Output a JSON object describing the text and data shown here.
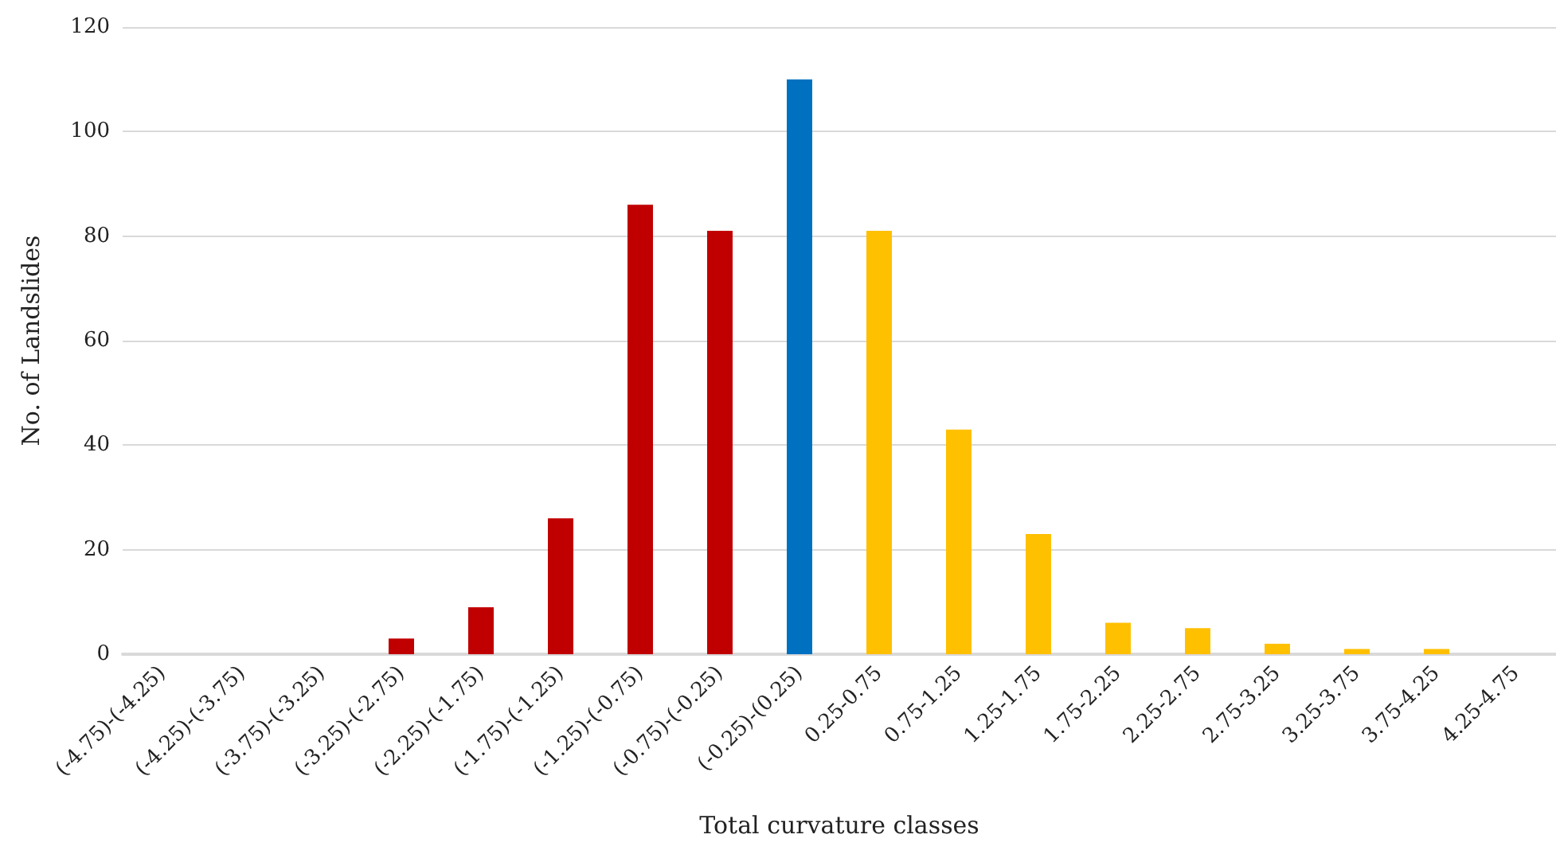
{
  "chart_data": {
    "type": "bar",
    "xlabel": "Total curvature classes",
    "ylabel": "No. of Landslides",
    "categories": [
      "(-4.75)-(-4.25)",
      "(-4.25)-(-3.75)",
      "(-3.75)-(-3.25)",
      "(-3.25)-(-2.75)",
      "(-2.25)-(-1.75)",
      "(-1.75)-(-1.25)",
      "(-1.25)-(-0.75)",
      "(-0.75)-(-0.25)",
      "(-0.25)-(0.25)",
      "0.25-0.75",
      "0.75-1.25",
      "1.25-1.75",
      "1.75-2.25",
      "2.25-2.75",
      "2.75-3.25",
      "3.25-3.75",
      "3.75-4.25",
      "4.25-4.75"
    ],
    "values": [
      0,
      0,
      0,
      3,
      9,
      26,
      86,
      81,
      110,
      81,
      43,
      23,
      6,
      5,
      2,
      1,
      1,
      0
    ],
    "colors": [
      "#c00000",
      "#c00000",
      "#c00000",
      "#c00000",
      "#c00000",
      "#c00000",
      "#c00000",
      "#c00000",
      "#0070c0",
      "#ffc000",
      "#ffc000",
      "#ffc000",
      "#ffc000",
      "#ffc000",
      "#ffc000",
      "#ffc000",
      "#ffc000",
      "#ffc000"
    ],
    "ylim": [
      0,
      120
    ],
    "yticks": [
      0,
      20,
      40,
      60,
      80,
      100,
      120
    ],
    "grid": "y"
  }
}
